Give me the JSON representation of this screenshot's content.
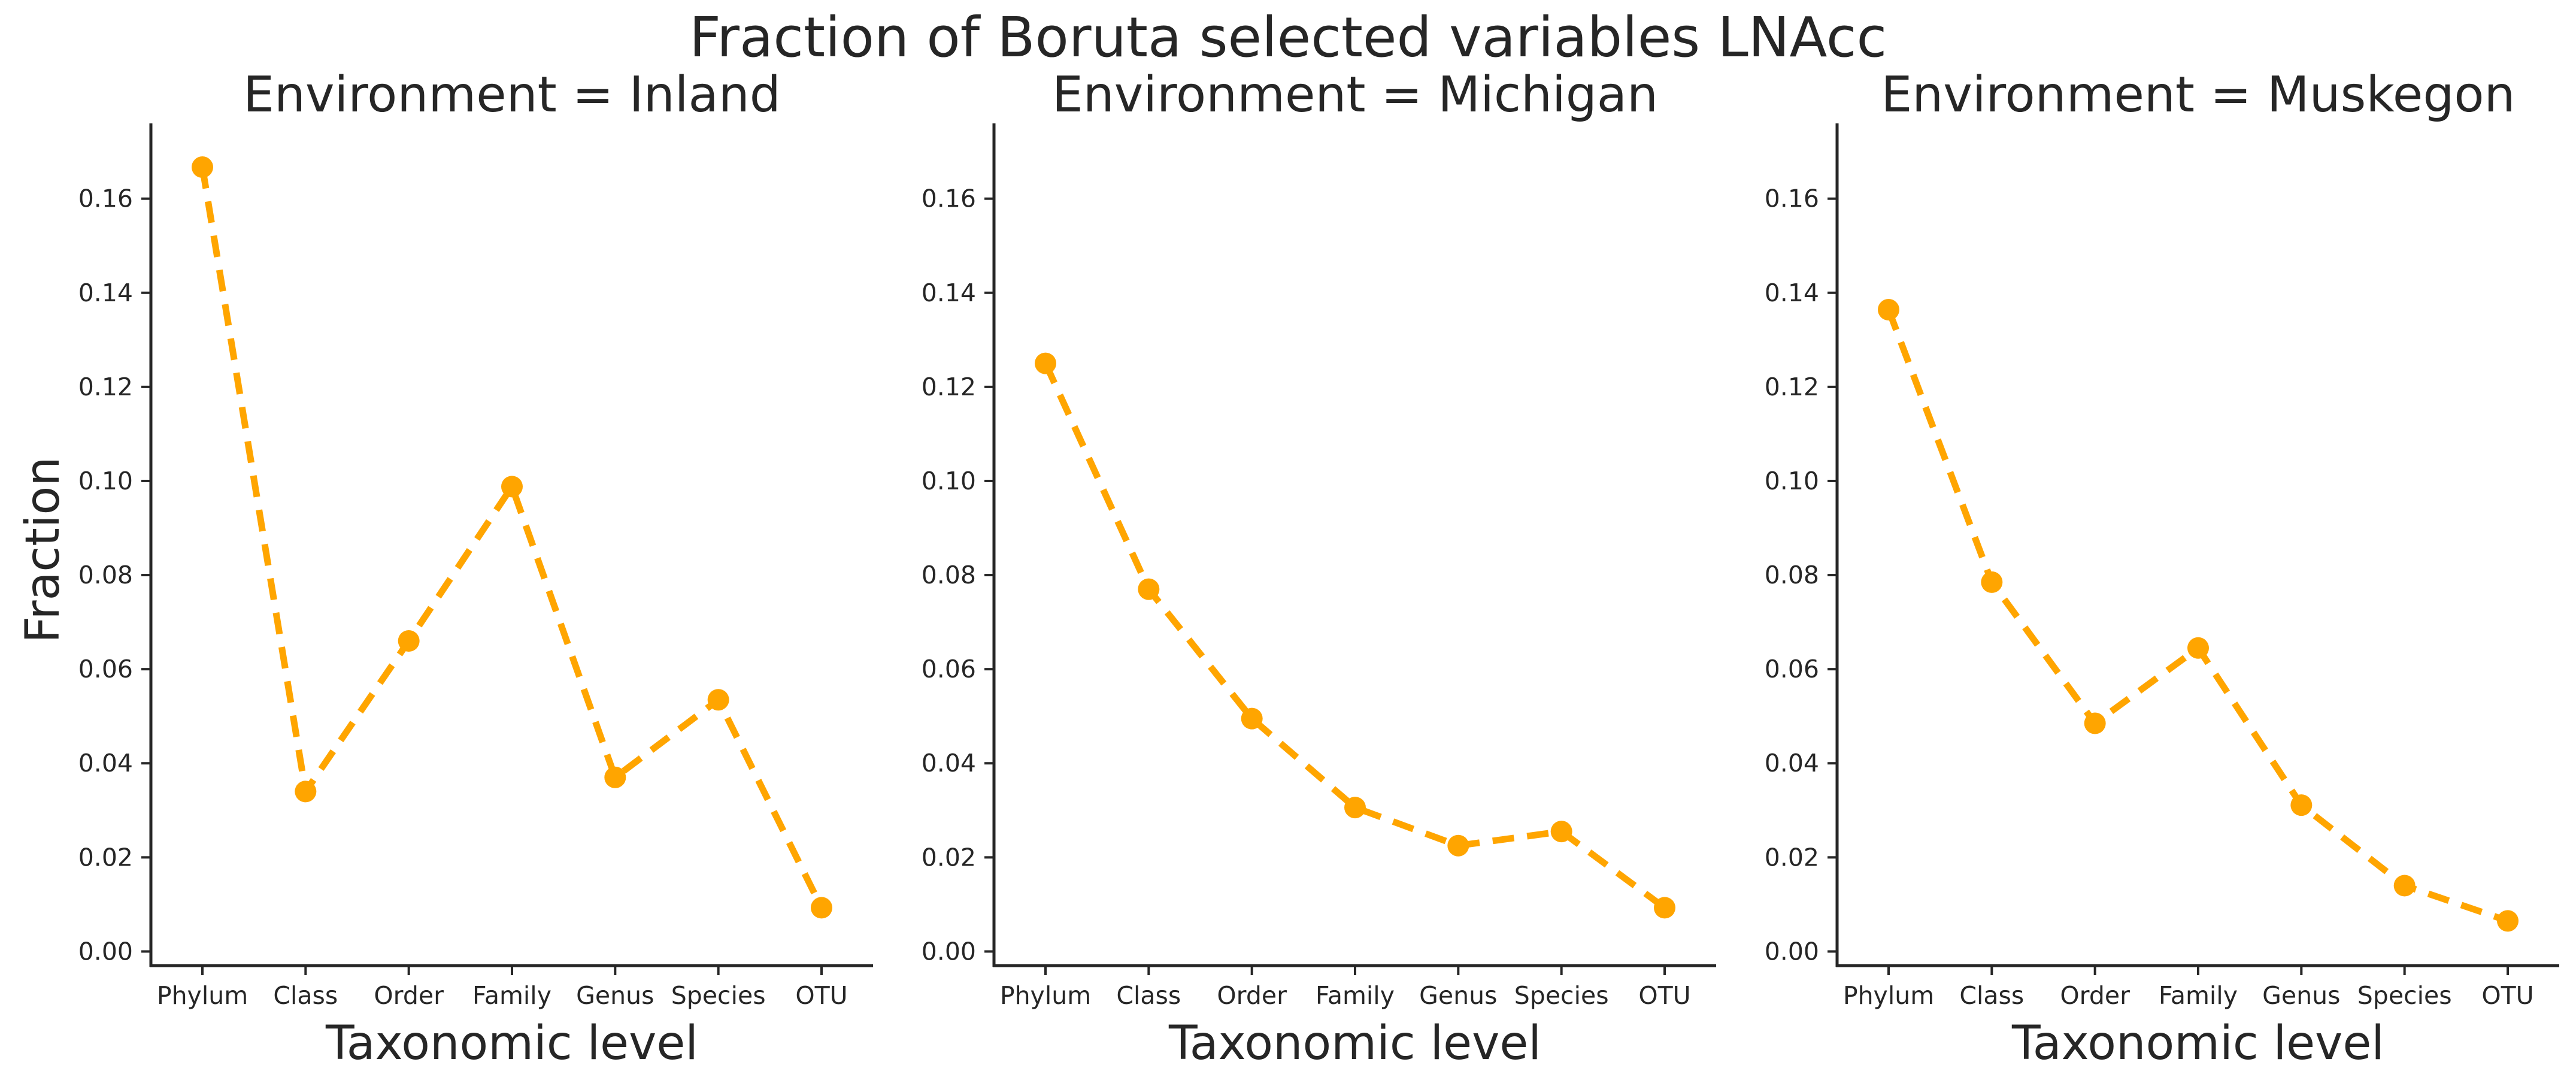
{
  "chart_data": {
    "type": "line",
    "title": "Fraction of Boruta selected variables LNAcc",
    "ylabel": "Fraction",
    "xlabel": "Taxonomic level",
    "categories": [
      "Phylum",
      "Class",
      "Order",
      "Family",
      "Genus",
      "Species",
      "OTU"
    ],
    "ylim": [
      -0.003,
      0.176
    ],
    "yticks": [
      0.0,
      0.02,
      0.04,
      0.06,
      0.08,
      0.1,
      0.12,
      0.14,
      0.16
    ],
    "ytick_labels": [
      "0.00",
      "0.02",
      "0.04",
      "0.06",
      "0.08",
      "0.10",
      "0.12",
      "0.14",
      "0.16"
    ],
    "line_color": "#ffa500",
    "line_style": "dashed",
    "marker": "circle",
    "grid": false,
    "panels": [
      {
        "title": "Environment = Inland",
        "values": [
          0.1667,
          0.034,
          0.066,
          0.0988,
          0.037,
          0.0535,
          0.0093
        ]
      },
      {
        "title": "Environment = Michigan",
        "values": [
          0.125,
          0.077,
          0.0495,
          0.0306,
          0.0225,
          0.0255,
          0.0093
        ]
      },
      {
        "title": "Environment = Muskegon",
        "values": [
          0.1364,
          0.0785,
          0.0485,
          0.0645,
          0.0311,
          0.014,
          0.0065
        ]
      }
    ]
  }
}
